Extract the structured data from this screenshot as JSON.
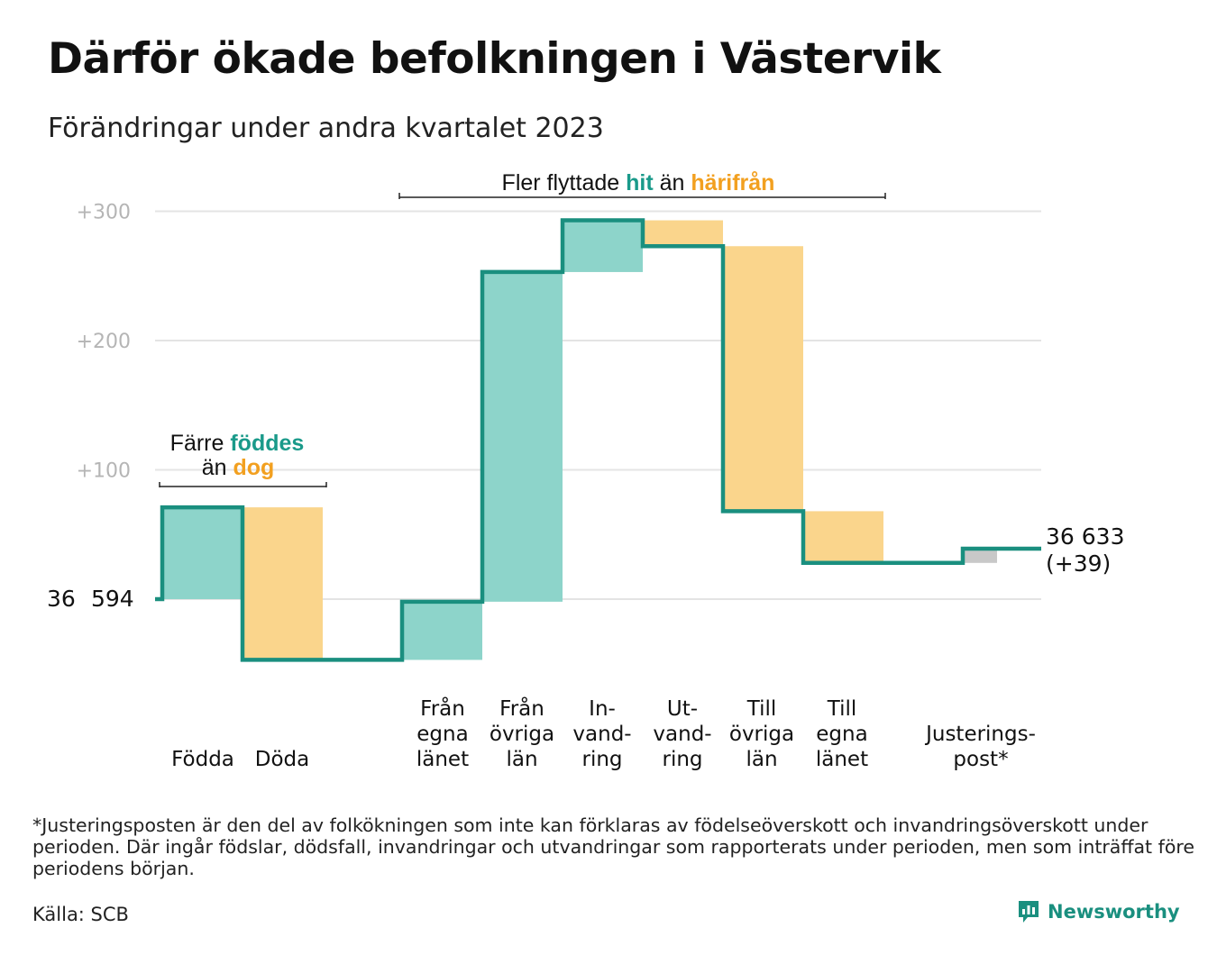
{
  "title": "Därför ökade befolkningen i Västervik",
  "subtitle": "Förändringar under andra kvartalet 2023",
  "colors": {
    "positive": "#8dd4ca",
    "negative": "#fad58c",
    "adjustment": "#c8c8c8",
    "line": "#1a8f7f",
    "pos_text": "#1a9a8a",
    "neg_text": "#f2a020",
    "grid": "#e4e4e4"
  },
  "chart_data": {
    "type": "waterfall",
    "y_ticks": [
      "+100",
      "+200",
      "+300"
    ],
    "ylim": [
      -50,
      300
    ],
    "start_label": [
      "36",
      "594"
    ],
    "start_value": 36594,
    "end_label": [
      "36 633",
      "(+39)"
    ],
    "end_value": 36633,
    "net_change": 39,
    "steps": [
      {
        "label": [
          "Födda"
        ],
        "change": 71,
        "kind": "positive"
      },
      {
        "label": [
          "Döda"
        ],
        "change": -118,
        "kind": "negative"
      },
      {
        "label": [
          "Från",
          "egna",
          "länet"
        ],
        "change": 45,
        "kind": "positive"
      },
      {
        "label": [
          "Från",
          "övriga",
          "län"
        ],
        "change": 255,
        "kind": "positive"
      },
      {
        "label": [
          "In-",
          "vand-",
          "ring"
        ],
        "change": 40,
        "kind": "positive"
      },
      {
        "label": [
          "Ut-",
          "vand-",
          "ring"
        ],
        "change": -20,
        "kind": "negative"
      },
      {
        "label": [
          "Till",
          "övriga",
          "län"
        ],
        "change": -205,
        "kind": "negative"
      },
      {
        "label": [
          "Till",
          "egna",
          "länet"
        ],
        "change": -40,
        "kind": "negative"
      },
      {
        "label": [
          "Justerings-",
          "post*"
        ],
        "change": 11,
        "kind": "adjustment"
      }
    ],
    "annotations": [
      {
        "parts": [
          [
            "Färre ",
            "plain"
          ],
          [
            "föddes",
            "pos"
          ]
        ],
        "parts2": [
          [
            "än ",
            "plain"
          ],
          [
            "dog",
            "neg"
          ]
        ]
      },
      {
        "parts": [
          [
            "Fler flyttade ",
            "plain"
          ],
          [
            "hit",
            "pos"
          ],
          [
            "  än ",
            "plain"
          ],
          [
            "härifrån",
            "neg"
          ]
        ]
      }
    ]
  },
  "footnote": "*Justeringsposten är den del av folkökningen som inte kan förklaras av födelseöverskott och invandringsöverskott under perioden. Där ingår födslar, dödsfall, invandringar och utvandringar som rapporterats under perioden, men som inträffat före periodens början.",
  "source": "Källa: SCB",
  "brand": "Newsworthy",
  "brand_icon": "newsworthy-logo-icon"
}
